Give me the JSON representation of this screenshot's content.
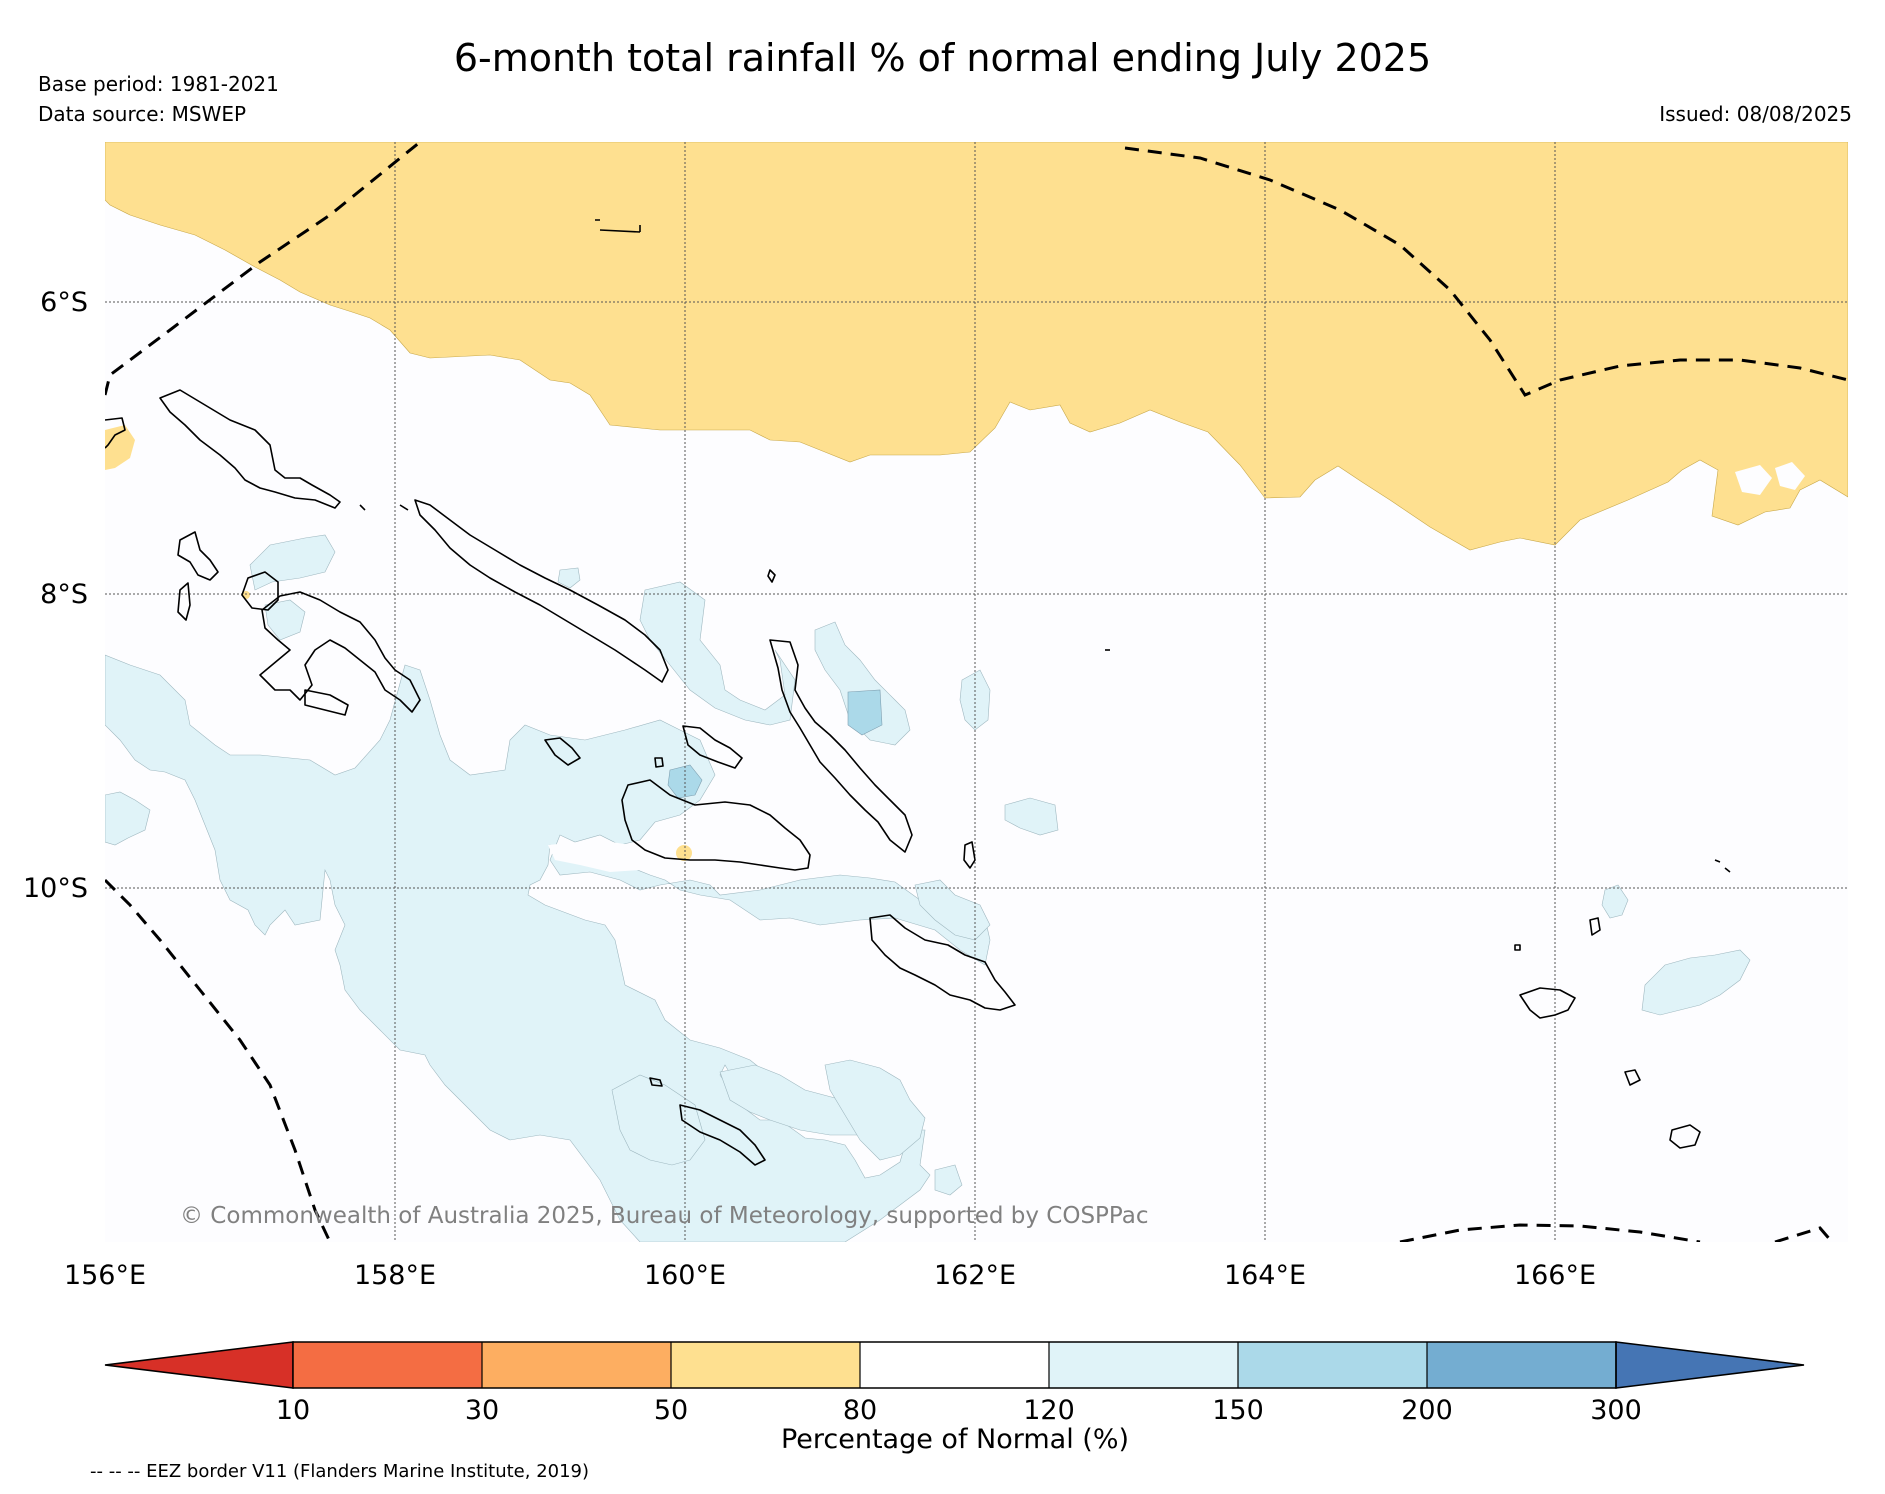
{
  "title": "6-month total rainfall % of normal ending July 2025",
  "base_period": "Base period: 1981-2021",
  "data_source": "Data source: MSWEP",
  "issued": "Issued: 08/08/2025",
  "copyright": "© Commonwealth of Australia 2025, Bureau of Meteorology, supported by COSPPac",
  "axes": {
    "lon_labels": [
      "156°E",
      "158°E",
      "160°E",
      "162°E",
      "164°E",
      "166°E"
    ],
    "lat_labels": [
      "6°S",
      "8°S",
      "10°S"
    ]
  },
  "colorbar": {
    "title": "Percentage of Normal (%)",
    "ticks": [
      "10",
      "30",
      "50",
      "80",
      "120",
      "150",
      "200",
      "300"
    ],
    "colors": [
      "#d73027",
      "#f46d43",
      "#fdae61",
      "#fee090",
      "#ffffff",
      "#e0f3f8",
      "#abd9e9",
      "#74add1",
      "#4575b4"
    ]
  },
  "legend_note": "-- -- -- EEZ border V11 (Flanders Marine Institute, 2019)",
  "fill_colors": {
    "dry_50_80": "#fee090",
    "wet_120_150": "#e0f3f8",
    "wet_150_200": "#abd9e9"
  }
}
